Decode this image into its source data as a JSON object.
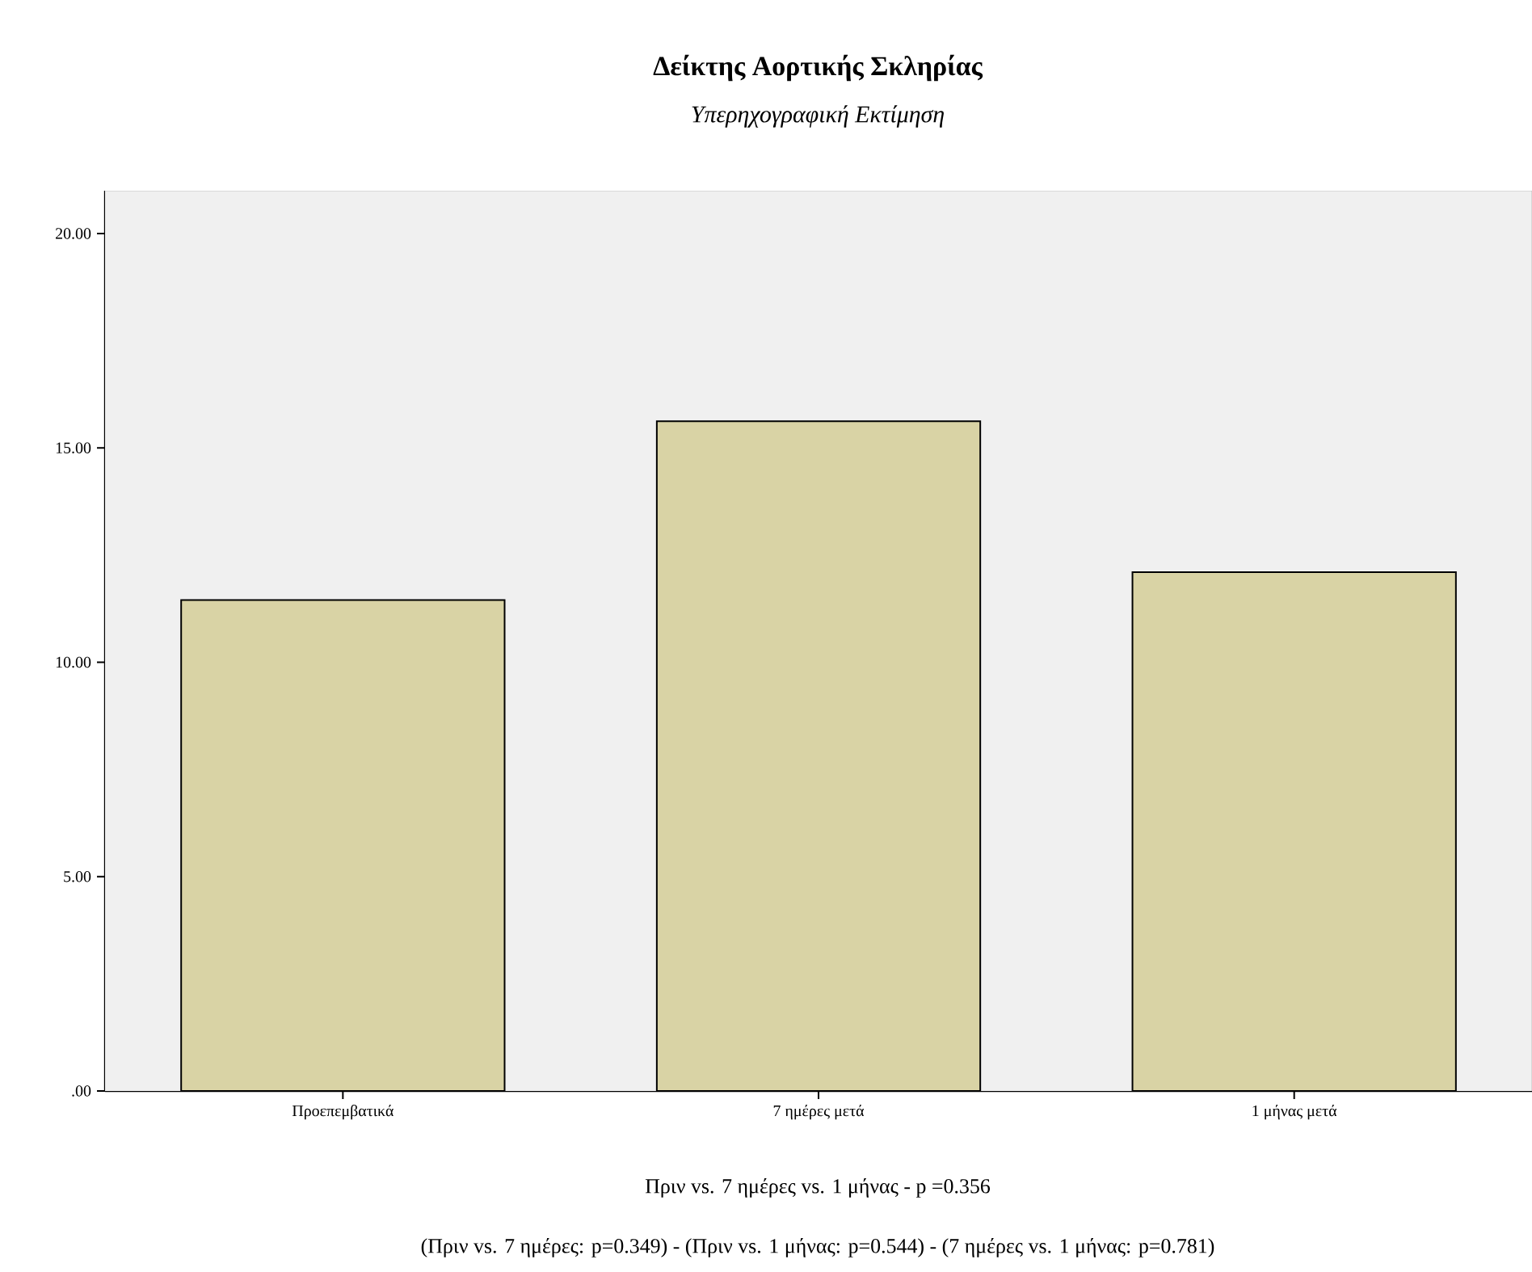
{
  "chart_data": {
    "type": "bar",
    "title": "Δείκτης Αορτικής Σκληρίας",
    "subtitle": "Υπερηχογραφική Εκτίμηση",
    "categories": [
      "Προεπεμβατικά",
      "7 ημέρες μετά",
      "1 μήνας μετά"
    ],
    "values": [
      11.45,
      15.62,
      12.1
    ],
    "color": "#d9d3a5",
    "ylim": [
      0,
      21
    ],
    "yticks": [
      {
        "value": 0,
        "label": ".00"
      },
      {
        "value": 5,
        "label": "5.00"
      },
      {
        "value": 10,
        "label": "10.00"
      },
      {
        "value": 15,
        "label": "15.00"
      },
      {
        "value": 20,
        "label": "20.00"
      }
    ],
    "annotations": [
      "Πριν vs. 7 ημέρες vs. 1 μήνας - p =0.356",
      "(Πριν vs. 7 ημέρες: p=0.349) - (Πριν vs. 1 μήνας: p=0.544) - (7 ημέρες vs. 1 μήνας: p=0.781)"
    ]
  }
}
